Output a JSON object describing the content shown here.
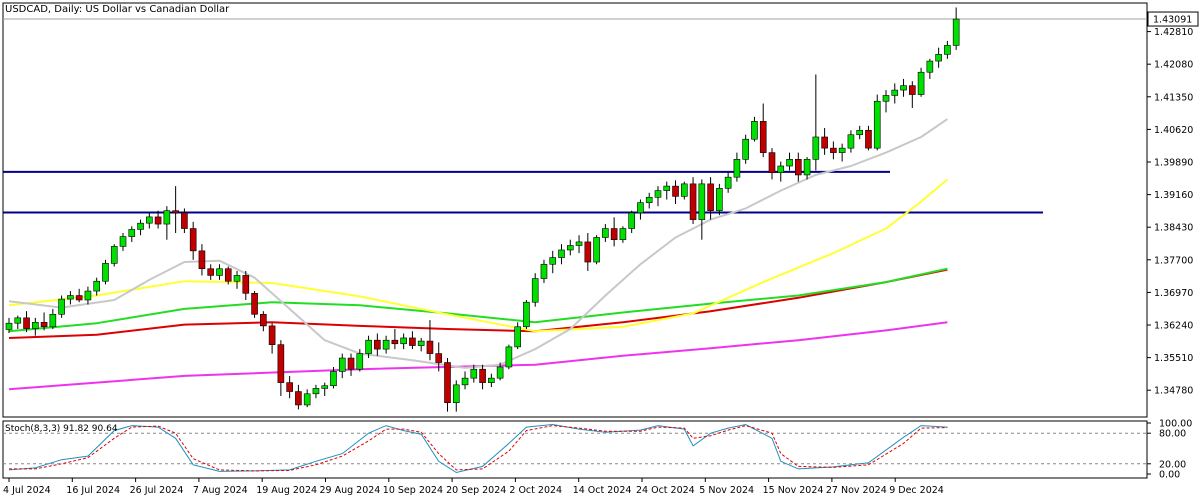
{
  "chart_data": {
    "type": "candlestick",
    "title": "USDCAD, Daily:  US Dollar vs Canadian Dollar",
    "symbol": "USDCAD",
    "timeframe": "Daily",
    "ylim": [
      1.3418,
      1.4345
    ],
    "y_ticks": [
      "1.42810",
      "1.42080",
      "1.41350",
      "1.40620",
      "1.39890",
      "1.39160",
      "1.38430",
      "1.37700",
      "1.36970",
      "1.36240",
      "1.35510",
      "1.34780"
    ],
    "current_price": "1.43091",
    "x_labels": [
      "4 Jul 2024",
      "16 Jul 2024",
      "26 Jul 2024",
      "7 Aug 2024",
      "19 Aug 2024",
      "29 Aug 2024",
      "10 Sep 2024",
      "20 Sep 2024",
      "2 Oct 2024",
      "14 Oct 2024",
      "24 Oct 2024",
      "5 Nov 2024",
      "15 Nov 2024",
      "27 Nov 2024",
      "9 Dec 2024"
    ],
    "colors": {
      "bull": "#00e000",
      "bear": "#c00000",
      "ma_gray": "#c8c8c8",
      "ma_yellow": "#ffff33",
      "ma_green": "#22dd22",
      "ma_red": "#dd0000",
      "ma_magenta": "#ee33ee",
      "horizontal_lines": "#000088",
      "stoch_main": "#2090c0",
      "stoch_signal": "#e00000",
      "price_line": "#a0a0a0"
    },
    "horizontal_levels": [
      1.3967,
      1.3876
    ],
    "candles": [
      [
        1.3614,
        1.364,
        1.3606,
        1.3628
      ],
      [
        1.3628,
        1.3645,
        1.3615,
        1.364
      ],
      [
        1.364,
        1.3655,
        1.3608,
        1.3616
      ],
      [
        1.3616,
        1.364,
        1.36,
        1.363
      ],
      [
        1.363,
        1.3652,
        1.3612,
        1.362
      ],
      [
        1.362,
        1.366,
        1.3615,
        1.3648
      ],
      [
        1.3648,
        1.369,
        1.364,
        1.3682
      ],
      [
        1.3682,
        1.37,
        1.367,
        1.369
      ],
      [
        1.369,
        1.3705,
        1.3675,
        1.368
      ],
      [
        1.368,
        1.371,
        1.367,
        1.37
      ],
      [
        1.37,
        1.373,
        1.369,
        1.3722
      ],
      [
        1.3722,
        1.377,
        1.3715,
        1.3762
      ],
      [
        1.3762,
        1.3805,
        1.3755,
        1.38
      ],
      [
        1.38,
        1.383,
        1.379,
        1.3822
      ],
      [
        1.3822,
        1.3845,
        1.381,
        1.3838
      ],
      [
        1.3838,
        1.386,
        1.3825,
        1.3852
      ],
      [
        1.3852,
        1.3875,
        1.384,
        1.3866
      ],
      [
        1.3866,
        1.388,
        1.384,
        1.385
      ],
      [
        1.385,
        1.389,
        1.3815,
        1.388
      ],
      [
        1.388,
        1.3935,
        1.383,
        1.3875
      ],
      [
        1.3875,
        1.3885,
        1.383,
        1.384
      ],
      [
        1.384,
        1.3855,
        1.377,
        1.379
      ],
      [
        1.379,
        1.3805,
        1.3735,
        1.375
      ],
      [
        1.375,
        1.376,
        1.3725,
        1.3735
      ],
      [
        1.3735,
        1.376,
        1.3725,
        1.375
      ],
      [
        1.375,
        1.3755,
        1.3715,
        1.3722
      ],
      [
        1.3722,
        1.3745,
        1.3705,
        1.3735
      ],
      [
        1.3735,
        1.3745,
        1.368,
        1.3695
      ],
      [
        1.3695,
        1.37,
        1.364,
        1.3648
      ],
      [
        1.3648,
        1.3655,
        1.361,
        1.3622
      ],
      [
        1.3622,
        1.3628,
        1.356,
        1.358
      ],
      [
        1.358,
        1.359,
        1.3465,
        1.3495
      ],
      [
        1.3495,
        1.351,
        1.346,
        1.3475
      ],
      [
        1.3475,
        1.349,
        1.3435,
        1.3445
      ],
      [
        1.3445,
        1.348,
        1.344,
        1.347
      ],
      [
        1.347,
        1.349,
        1.346,
        1.3482
      ],
      [
        1.3482,
        1.3495,
        1.3465,
        1.3488
      ],
      [
        1.3488,
        1.353,
        1.3482,
        1.352
      ],
      [
        1.352,
        1.356,
        1.3505,
        1.355
      ],
      [
        1.355,
        1.356,
        1.351,
        1.3525
      ],
      [
        1.3525,
        1.357,
        1.352,
        1.356
      ],
      [
        1.356,
        1.36,
        1.355,
        1.359
      ],
      [
        1.359,
        1.3605,
        1.3555,
        1.357
      ],
      [
        1.357,
        1.36,
        1.356,
        1.359
      ],
      [
        1.359,
        1.3615,
        1.357,
        1.3582
      ],
      [
        1.3582,
        1.3605,
        1.357,
        1.3595
      ],
      [
        1.3595,
        1.361,
        1.357,
        1.3578
      ],
      [
        1.3578,
        1.3595,
        1.3565,
        1.3588
      ],
      [
        1.3588,
        1.3635,
        1.3545,
        1.356
      ],
      [
        1.356,
        1.3585,
        1.352,
        1.354
      ],
      [
        1.354,
        1.355,
        1.343,
        1.345
      ],
      [
        1.345,
        1.35,
        1.343,
        1.349
      ],
      [
        1.349,
        1.352,
        1.348,
        1.3505
      ],
      [
        1.3505,
        1.3535,
        1.3495,
        1.3525
      ],
      [
        1.3525,
        1.3535,
        1.348,
        1.3495
      ],
      [
        1.3495,
        1.3515,
        1.3485,
        1.3505
      ],
      [
        1.3505,
        1.354,
        1.35,
        1.353
      ],
      [
        1.353,
        1.358,
        1.3525,
        1.3575
      ],
      [
        1.3575,
        1.363,
        1.357,
        1.362
      ],
      [
        1.362,
        1.368,
        1.3615,
        1.3675
      ],
      [
        1.3675,
        1.374,
        1.3665,
        1.3728
      ],
      [
        1.3728,
        1.377,
        1.3718,
        1.376
      ],
      [
        1.376,
        1.379,
        1.374,
        1.3775
      ],
      [
        1.3775,
        1.3805,
        1.376,
        1.3792
      ],
      [
        1.3792,
        1.3815,
        1.378,
        1.3802
      ],
      [
        1.3802,
        1.3825,
        1.3785,
        1.381
      ],
      [
        1.381,
        1.383,
        1.3745,
        1.3765
      ],
      [
        1.3765,
        1.3825,
        1.376,
        1.382
      ],
      [
        1.382,
        1.385,
        1.381,
        1.384
      ],
      [
        1.384,
        1.3865,
        1.38,
        1.3815
      ],
      [
        1.3815,
        1.3845,
        1.3808,
        1.384
      ],
      [
        1.384,
        1.388,
        1.383,
        1.3875
      ],
      [
        1.3875,
        1.3905,
        1.386,
        1.3898
      ],
      [
        1.3898,
        1.392,
        1.3885,
        1.391
      ],
      [
        1.391,
        1.3935,
        1.389,
        1.3925
      ],
      [
        1.3925,
        1.3945,
        1.3905,
        1.3935
      ],
      [
        1.3935,
        1.3948,
        1.3895,
        1.3912
      ],
      [
        1.3912,
        1.3945,
        1.3905,
        1.394
      ],
      [
        1.394,
        1.3955,
        1.385,
        1.386
      ],
      [
        1.386,
        1.395,
        1.3815,
        1.394
      ],
      [
        1.394,
        1.3955,
        1.386,
        1.388
      ],
      [
        1.388,
        1.394,
        1.387,
        1.393
      ],
      [
        1.393,
        1.3965,
        1.392,
        1.3955
      ],
      [
        1.3955,
        1.401,
        1.3945,
        1.3995
      ],
      [
        1.3995,
        1.405,
        1.3985,
        1.404
      ],
      [
        1.404,
        1.409,
        1.4035,
        1.408
      ],
      [
        1.408,
        1.412,
        1.4,
        1.401
      ],
      [
        1.401,
        1.402,
        1.395,
        1.3965
      ],
      [
        1.3965,
        1.399,
        1.3945,
        1.398
      ],
      [
        1.398,
        1.401,
        1.397,
        1.3995
      ],
      [
        1.3995,
        1.401,
        1.3945,
        1.396
      ],
      [
        1.396,
        1.4,
        1.395,
        1.3995
      ],
      [
        1.3995,
        1.4185,
        1.397,
        1.4045
      ],
      [
        1.4045,
        1.4065,
        1.4005,
        1.402
      ],
      [
        1.402,
        1.4035,
        1.3995,
        1.401
      ],
      [
        1.401,
        1.403,
        1.399,
        1.402
      ],
      [
        1.402,
        1.406,
        1.401,
        1.405
      ],
      [
        1.405,
        1.407,
        1.404,
        1.406
      ],
      [
        1.406,
        1.407,
        1.4015,
        1.402
      ],
      [
        1.402,
        1.414,
        1.4015,
        1.4125
      ],
      [
        1.4125,
        1.415,
        1.41,
        1.4138
      ],
      [
        1.4138,
        1.4165,
        1.412,
        1.415
      ],
      [
        1.415,
        1.4175,
        1.4135,
        1.416
      ],
      [
        1.416,
        1.417,
        1.411,
        1.414
      ],
      [
        1.414,
        1.42,
        1.4135,
        1.419
      ],
      [
        1.419,
        1.422,
        1.4175,
        1.4215
      ],
      [
        1.4215,
        1.4245,
        1.42,
        1.423
      ],
      [
        1.423,
        1.426,
        1.422,
        1.425
      ],
      [
        1.425,
        1.4335,
        1.424,
        1.4309
      ]
    ],
    "ma_gray": [
      [
        0,
        1.3677
      ],
      [
        6,
        1.3663
      ],
      [
        12,
        1.368
      ],
      [
        16,
        1.3725
      ],
      [
        20,
        1.3765
      ],
      [
        24,
        1.3768
      ],
      [
        28,
        1.373
      ],
      [
        32,
        1.366
      ],
      [
        36,
        1.359
      ],
      [
        40,
        1.356
      ],
      [
        46,
        1.3545
      ],
      [
        52,
        1.3528
      ],
      [
        56,
        1.3535
      ],
      [
        60,
        1.357
      ],
      [
        64,
        1.3615
      ],
      [
        68,
        1.369
      ],
      [
        72,
        1.376
      ],
      [
        76,
        1.382
      ],
      [
        80,
        1.386
      ],
      [
        84,
        1.3885
      ],
      [
        88,
        1.3925
      ],
      [
        92,
        1.396
      ],
      [
        96,
        1.398
      ],
      [
        100,
        1.401
      ],
      [
        104,
        1.4045
      ],
      [
        107,
        1.4085
      ]
    ],
    "ma_yellow": [
      [
        0,
        1.3668
      ],
      [
        10,
        1.369
      ],
      [
        20,
        1.3722
      ],
      [
        30,
        1.3718
      ],
      [
        40,
        1.3688
      ],
      [
        50,
        1.3648
      ],
      [
        60,
        1.361
      ],
      [
        70,
        1.362
      ],
      [
        78,
        1.365
      ],
      [
        86,
        1.372
      ],
      [
        94,
        1.3785
      ],
      [
        100,
        1.384
      ],
      [
        104,
        1.39
      ],
      [
        107,
        1.395
      ]
    ],
    "ma_green": [
      [
        0,
        1.361
      ],
      [
        10,
        1.3628
      ],
      [
        20,
        1.366
      ],
      [
        30,
        1.3675
      ],
      [
        40,
        1.3668
      ],
      [
        50,
        1.365
      ],
      [
        60,
        1.363
      ],
      [
        70,
        1.3652
      ],
      [
        80,
        1.3672
      ],
      [
        90,
        1.369
      ],
      [
        100,
        1.372
      ],
      [
        107,
        1.375
      ]
    ],
    "ma_red": [
      [
        0,
        1.3595
      ],
      [
        10,
        1.3602
      ],
      [
        20,
        1.3625
      ],
      [
        30,
        1.363
      ],
      [
        40,
        1.3622
      ],
      [
        50,
        1.3615
      ],
      [
        60,
        1.361
      ],
      [
        70,
        1.363
      ],
      [
        80,
        1.3655
      ],
      [
        90,
        1.3685
      ],
      [
        100,
        1.372
      ],
      [
        107,
        1.3748
      ]
    ],
    "ma_magenta": [
      [
        0,
        1.348
      ],
      [
        20,
        1.351
      ],
      [
        40,
        1.3525
      ],
      [
        60,
        1.3535
      ],
      [
        70,
        1.3555
      ],
      [
        80,
        1.3572
      ],
      [
        90,
        1.359
      ],
      [
        100,
        1.3612
      ],
      [
        107,
        1.363
      ]
    ],
    "stochastic": {
      "label": "Stoch(8,3,3) 91.82 90.64",
      "levels": [
        20,
        80
      ],
      "y_ticks": [
        "100.00",
        "80.00",
        "20.00",
        "0.00"
      ],
      "main": [
        [
          0,
          8
        ],
        [
          3,
          12
        ],
        [
          6,
          28
        ],
        [
          9,
          35
        ],
        [
          12,
          85
        ],
        [
          14,
          95
        ],
        [
          17,
          92
        ],
        [
          19,
          70
        ],
        [
          21,
          18
        ],
        [
          24,
          5
        ],
        [
          28,
          6
        ],
        [
          32,
          8
        ],
        [
          35,
          25
        ],
        [
          38,
          40
        ],
        [
          41,
          80
        ],
        [
          43,
          95
        ],
        [
          45,
          85
        ],
        [
          47,
          78
        ],
        [
          49,
          25
        ],
        [
          51,
          3
        ],
        [
          54,
          15
        ],
        [
          57,
          60
        ],
        [
          59,
          92
        ],
        [
          62,
          97
        ],
        [
          65,
          88
        ],
        [
          68,
          82
        ],
        [
          72,
          86
        ],
        [
          74,
          95
        ],
        [
          77,
          88
        ],
        [
          78,
          55
        ],
        [
          80,
          80
        ],
        [
          82,
          90
        ],
        [
          84,
          97
        ],
        [
          87,
          70
        ],
        [
          88,
          25
        ],
        [
          90,
          10
        ],
        [
          94,
          14
        ],
        [
          98,
          22
        ],
        [
          102,
          72
        ],
        [
          104,
          95
        ],
        [
          107,
          92
        ]
      ],
      "signal": [
        [
          0,
          10
        ],
        [
          3,
          10
        ],
        [
          6,
          20
        ],
        [
          9,
          32
        ],
        [
          12,
          70
        ],
        [
          14,
          92
        ],
        [
          17,
          94
        ],
        [
          19,
          80
        ],
        [
          21,
          30
        ],
        [
          24,
          8
        ],
        [
          28,
          6
        ],
        [
          32,
          7
        ],
        [
          35,
          18
        ],
        [
          38,
          35
        ],
        [
          41,
          65
        ],
        [
          43,
          88
        ],
        [
          45,
          88
        ],
        [
          47,
          82
        ],
        [
          49,
          40
        ],
        [
          51,
          8
        ],
        [
          54,
          10
        ],
        [
          57,
          45
        ],
        [
          59,
          85
        ],
        [
          62,
          95
        ],
        [
          65,
          90
        ],
        [
          68,
          84
        ],
        [
          72,
          84
        ],
        [
          74,
          92
        ],
        [
          77,
          90
        ],
        [
          78,
          70
        ],
        [
          80,
          75
        ],
        [
          82,
          86
        ],
        [
          84,
          95
        ],
        [
          87,
          80
        ],
        [
          88,
          40
        ],
        [
          90,
          15
        ],
        [
          94,
          13
        ],
        [
          98,
          18
        ],
        [
          102,
          60
        ],
        [
          104,
          90
        ],
        [
          107,
          91
        ]
      ]
    }
  }
}
